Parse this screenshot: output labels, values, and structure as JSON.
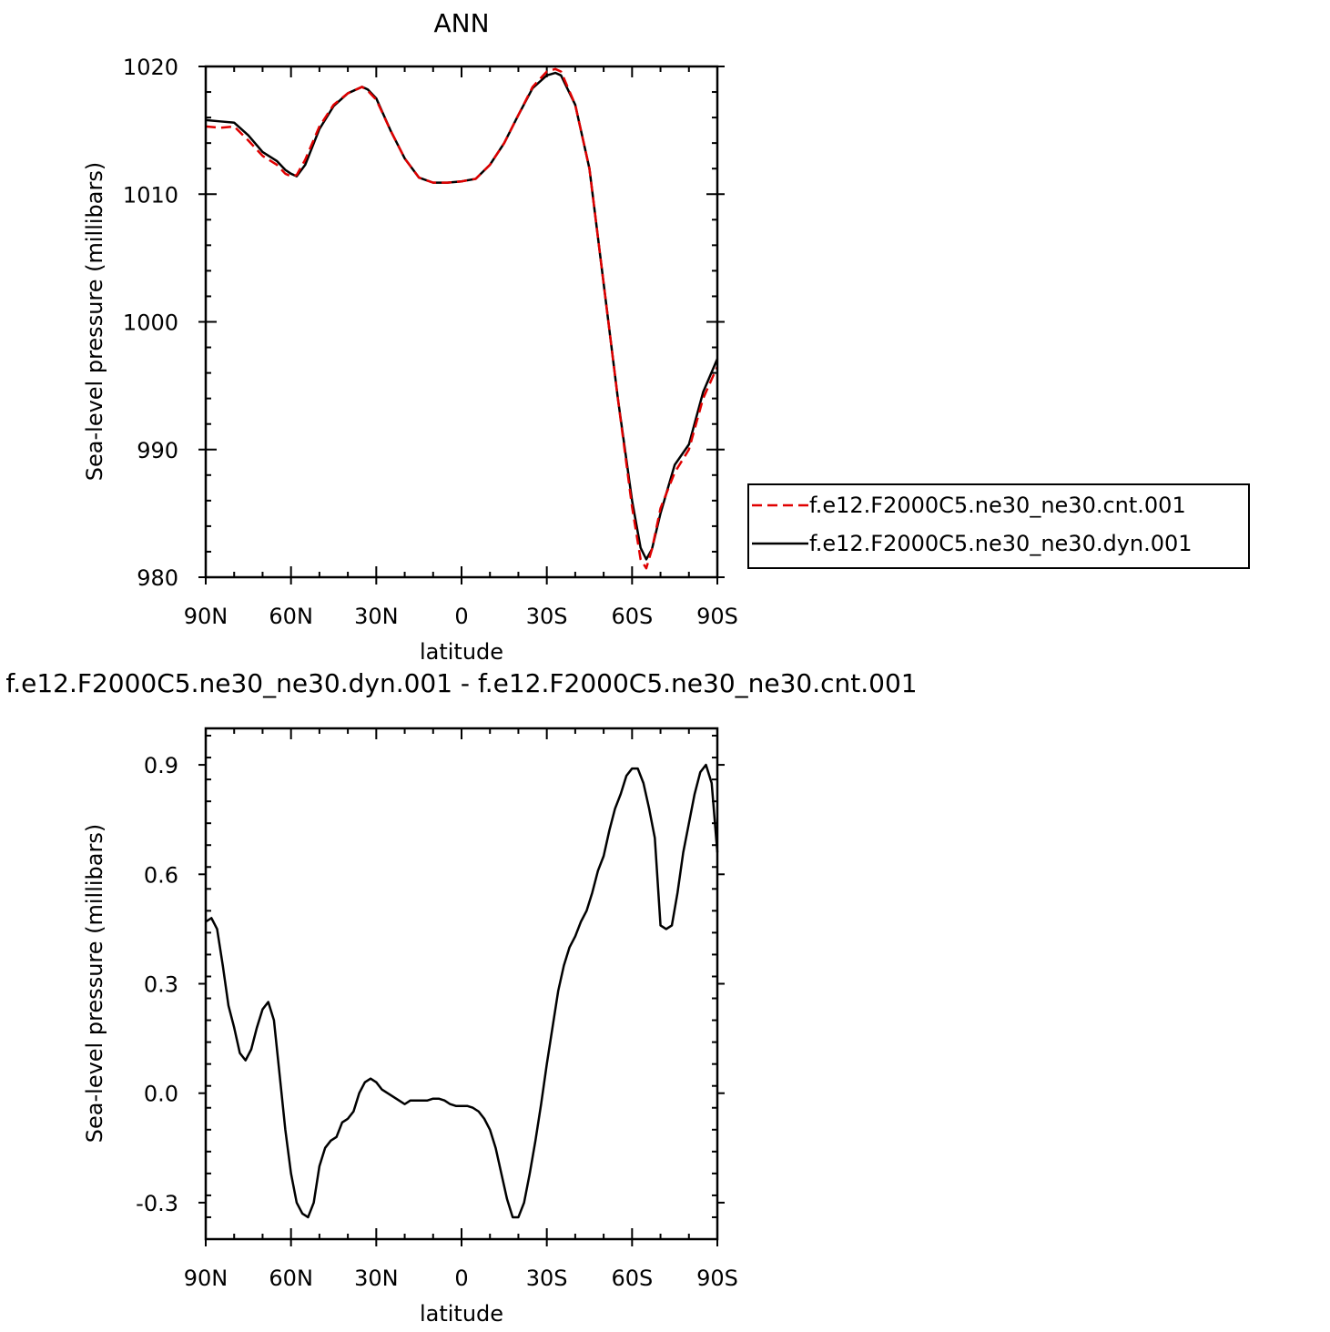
{
  "chart_data": [
    {
      "type": "line",
      "title": "ANN",
      "xlabel": "latitude",
      "ylabel": "Sea-level pressure (millibars)",
      "x_tick_labels": [
        "90N",
        "60N",
        "30N",
        "0",
        "30S",
        "60S",
        "90S"
      ],
      "x_ticks": [
        90,
        60,
        30,
        0,
        -30,
        -60,
        -90
      ],
      "xlim": [
        90,
        -90
      ],
      "ylim": [
        980,
        1020
      ],
      "y_ticks": [
        980,
        990,
        1000,
        1010,
        1020
      ],
      "y_tick_labels": [
        "980",
        "990",
        "1000",
        "1010",
        "1020"
      ],
      "legend_position": "right",
      "series": [
        {
          "name": "f.e12.F2000C5.ne30_ne30.cnt.001",
          "color": "#e00000",
          "dash": true,
          "x": [
            90,
            85,
            80,
            75,
            70,
            65,
            62,
            60,
            58,
            55,
            50,
            45,
            40,
            35,
            33,
            30,
            25,
            20,
            15,
            10,
            5,
            0,
            -5,
            -10,
            -15,
            -20,
            -25,
            -30,
            -33,
            -35,
            -40,
            -45,
            -50,
            -55,
            -60,
            -63,
            -65,
            -67,
            -70,
            -75,
            -80,
            -85,
            -90
          ],
          "y": [
            1015.3,
            1015.2,
            1015.3,
            1014.2,
            1013.0,
            1012.3,
            1011.6,
            1011.4,
            1011.5,
            1012.7,
            1015.3,
            1017.0,
            1017.9,
            1018.4,
            1018.1,
            1017.4,
            1015.0,
            1012.8,
            1011.3,
            1010.9,
            1010.9,
            1011.0,
            1011.2,
            1012.3,
            1014.0,
            1016.2,
            1018.4,
            1019.6,
            1019.8,
            1019.6,
            1017.0,
            1012.0,
            1003.0,
            994.0,
            985.5,
            981.4,
            980.7,
            982.2,
            985.4,
            988.2,
            990.0,
            994.0,
            996.5
          ]
        },
        {
          "name": "f.e12.F2000C5.ne30_ne30.dyn.001",
          "color": "#000000",
          "dash": false,
          "x": [
            90,
            85,
            80,
            75,
            70,
            65,
            62,
            60,
            58,
            55,
            50,
            45,
            40,
            35,
            33,
            30,
            25,
            20,
            15,
            10,
            5,
            0,
            -5,
            -10,
            -15,
            -20,
            -25,
            -30,
            -33,
            -35,
            -40,
            -45,
            -50,
            -55,
            -60,
            -63,
            -65,
            -67,
            -70,
            -75,
            -80,
            -85,
            -90
          ],
          "y": [
            1015.8,
            1015.7,
            1015.6,
            1014.6,
            1013.3,
            1012.6,
            1011.9,
            1011.6,
            1011.4,
            1012.3,
            1015.1,
            1016.9,
            1017.9,
            1018.4,
            1018.2,
            1017.5,
            1015.0,
            1012.8,
            1011.3,
            1010.9,
            1010.9,
            1011.0,
            1011.2,
            1012.3,
            1014.0,
            1016.2,
            1018.3,
            1019.3,
            1019.5,
            1019.3,
            1017.0,
            1012.0,
            1003.0,
            994.0,
            986.0,
            982.3,
            981.4,
            982.2,
            985.0,
            988.8,
            990.4,
            994.5,
            997.1
          ]
        }
      ]
    },
    {
      "type": "line",
      "title": "f.e12.F2000C5.ne30_ne30.dyn.001 - f.e12.F2000C5.ne30_ne30.cnt.001",
      "xlabel": "latitude",
      "ylabel": "Sea-level pressure (millibars)",
      "x_tick_labels": [
        "90N",
        "60N",
        "30N",
        "0",
        "30S",
        "60S",
        "90S"
      ],
      "x_ticks": [
        90,
        60,
        30,
        0,
        -30,
        -60,
        -90
      ],
      "xlim": [
        90,
        -90
      ],
      "ylim": [
        -0.4,
        1.0
      ],
      "y_ticks": [
        -0.3,
        0.0,
        0.3,
        0.6,
        0.9
      ],
      "y_tick_labels": [
        "-0.3",
        "0.0",
        "0.3",
        "0.6",
        "0.9"
      ],
      "series": [
        {
          "color": "#000000",
          "x": [
            90,
            88,
            86,
            84,
            82,
            80,
            78,
            76,
            74,
            72,
            70,
            68,
            66,
            64,
            62,
            60,
            58,
            56,
            54,
            52,
            50,
            48,
            46,
            44,
            42,
            40,
            38,
            36,
            34,
            32,
            30,
            28,
            26,
            24,
            22,
            20,
            18,
            16,
            14,
            12,
            10,
            8,
            6,
            4,
            2,
            0,
            -2,
            -4,
            -6,
            -8,
            -10,
            -12,
            -14,
            -16,
            -18,
            -20,
            -22,
            -24,
            -26,
            -28,
            -30,
            -32,
            -34,
            -36,
            -38,
            -40,
            -42,
            -44,
            -46,
            -48,
            -50,
            -52,
            -54,
            -56,
            -58,
            -60,
            -62,
            -64,
            -66,
            -68,
            -70,
            -72,
            -74,
            -76,
            -78,
            -80,
            -82,
            -84,
            -86,
            -88,
            -90
          ],
          "y": [
            0.47,
            0.48,
            0.45,
            0.35,
            0.24,
            0.18,
            0.11,
            0.09,
            0.12,
            0.18,
            0.23,
            0.25,
            0.2,
            0.05,
            -0.1,
            -0.22,
            -0.3,
            -0.33,
            -0.34,
            -0.3,
            -0.2,
            -0.15,
            -0.13,
            -0.12,
            -0.08,
            -0.07,
            -0.05,
            0.0,
            0.03,
            0.04,
            0.03,
            0.01,
            0.0,
            -0.01,
            -0.02,
            -0.03,
            -0.02,
            -0.02,
            -0.02,
            -0.02,
            -0.015,
            -0.015,
            -0.02,
            -0.03,
            -0.035,
            -0.035,
            -0.035,
            -0.04,
            -0.05,
            -0.07,
            -0.1,
            -0.15,
            -0.22,
            -0.29,
            -0.34,
            -0.34,
            -0.3,
            -0.22,
            -0.13,
            -0.03,
            0.08,
            0.18,
            0.28,
            0.35,
            0.4,
            0.43,
            0.47,
            0.5,
            0.55,
            0.61,
            0.65,
            0.72,
            0.78,
            0.82,
            0.87,
            0.89,
            0.89,
            0.85,
            0.78,
            0.7,
            0.46,
            0.45,
            0.46,
            0.55,
            0.66,
            0.74,
            0.82,
            0.88,
            0.9,
            0.85,
            0.66
          ]
        }
      ]
    }
  ]
}
